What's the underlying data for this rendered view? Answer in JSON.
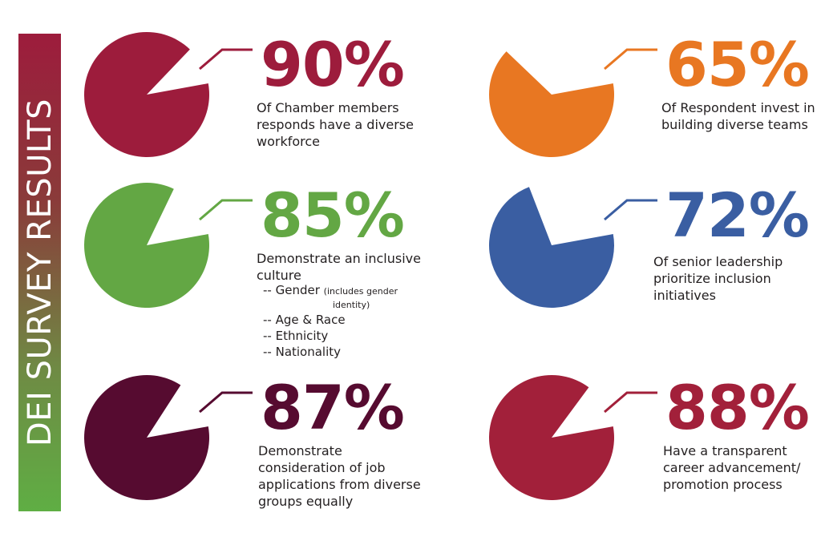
{
  "banner": {
    "title": "DEI SURVEY RESULTS"
  },
  "chart_data": {
    "type": "pie",
    "title": "DEI SURVEY RESULTS",
    "stats": [
      {
        "value": 90,
        "label": "90%",
        "color": "#9d1c3c",
        "description": [
          "Of Chamber members",
          "responds have a diverse",
          "workforce"
        ]
      },
      {
        "value": 65,
        "label": "65%",
        "color": "#e87722",
        "description": [
          "Of Respondent invest in",
          "building diverse teams"
        ]
      },
      {
        "value": 85,
        "label": "85%",
        "color": "#63a744",
        "description": [
          "Demonstrate an inclusive",
          "culture"
        ],
        "subitems": [
          {
            "text": "-- Gender",
            "note": "(includes gender",
            "note2": "identity)"
          },
          {
            "text": "-- Age & Race"
          },
          {
            "text": "-- Ethnicity"
          },
          {
            "text": "-- Nationality"
          }
        ]
      },
      {
        "value": 72,
        "label": "72%",
        "color": "#3a5ea2",
        "description": [
          "Of senior leadership",
          "prioritize inclusion",
          "initiatives"
        ]
      },
      {
        "value": 87,
        "label": "87%",
        "color": "#560b30",
        "description": [
          "Demonstrate",
          "consideration of job",
          "applications from diverse",
          "groups equally"
        ]
      },
      {
        "value": 88,
        "label": "88%",
        "color": "#a2203a",
        "description": [
          "Have a transparent",
          "career advancement/",
          "promotion process"
        ]
      }
    ]
  }
}
